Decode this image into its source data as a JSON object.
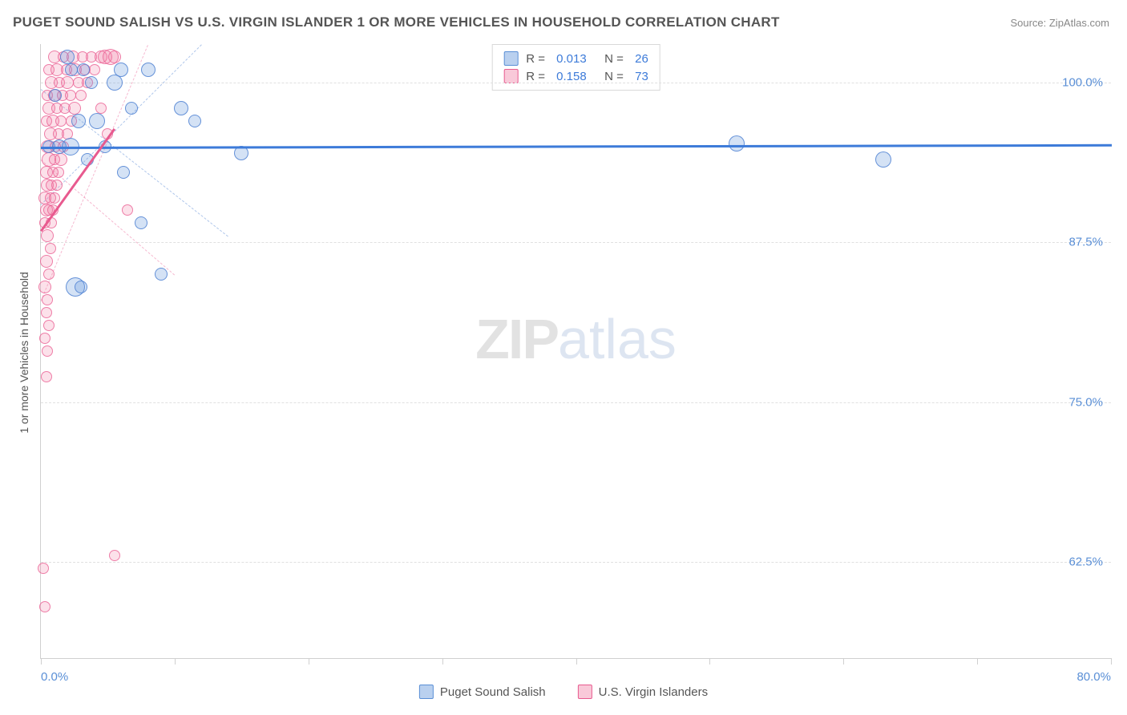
{
  "title": "PUGET SOUND SALISH VS U.S. VIRGIN ISLANDER 1 OR MORE VEHICLES IN HOUSEHOLD CORRELATION CHART",
  "source": "Source: ZipAtlas.com",
  "y_axis_label": "1 or more Vehicles in Household",
  "watermark_a": "ZIP",
  "watermark_b": "atlas",
  "chart": {
    "type": "scatter",
    "xlim": [
      0,
      80
    ],
    "ylim": [
      55,
      103
    ],
    "x_ticks": [
      0,
      10,
      20,
      30,
      40,
      50,
      60,
      70,
      80
    ],
    "x_tick_labels": {
      "0": "0.0%",
      "80": "80.0%"
    },
    "y_ticks": [
      62.5,
      75.0,
      87.5,
      100.0
    ],
    "y_tick_labels": [
      "62.5%",
      "75.0%",
      "87.5%",
      "100.0%"
    ],
    "grid_color": "#e0e0e0",
    "background_color": "#ffffff",
    "series": [
      {
        "name": "Puget Sound Salish",
        "color_fill": "rgba(100,150,220,0.28)",
        "color_stroke": "#5a8fd6",
        "marker_radius_base": 8,
        "stats": {
          "R": "0.013",
          "N": "26"
        },
        "trendline": {
          "x1": 0,
          "y1": 95.0,
          "x2": 80,
          "y2": 95.2
        },
        "confidence": [
          {
            "x1": 0,
            "y1": 90.5,
            "x2": 12,
            "y2": 103
          },
          {
            "x1": 0,
            "y1": 99.5,
            "x2": 14,
            "y2": 88
          }
        ],
        "points": [
          {
            "x": 0.6,
            "y": 95,
            "r": 8
          },
          {
            "x": 1.1,
            "y": 99,
            "r": 8
          },
          {
            "x": 1.4,
            "y": 95,
            "r": 9
          },
          {
            "x": 2.0,
            "y": 102,
            "r": 9
          },
          {
            "x": 2.3,
            "y": 101,
            "r": 8
          },
          {
            "x": 2.2,
            "y": 95,
            "r": 11
          },
          {
            "x": 2.8,
            "y": 97,
            "r": 9
          },
          {
            "x": 3.2,
            "y": 101,
            "r": 8
          },
          {
            "x": 3.5,
            "y": 94,
            "r": 8
          },
          {
            "x": 3.8,
            "y": 100,
            "r": 8
          },
          {
            "x": 4.2,
            "y": 97,
            "r": 10
          },
          {
            "x": 4.8,
            "y": 95,
            "r": 8
          },
          {
            "x": 5.5,
            "y": 100,
            "r": 10
          },
          {
            "x": 6.0,
            "y": 101,
            "r": 9
          },
          {
            "x": 6.2,
            "y": 93,
            "r": 8
          },
          {
            "x": 6.8,
            "y": 98,
            "r": 8
          },
          {
            "x": 7.5,
            "y": 89,
            "r": 8
          },
          {
            "x": 8.0,
            "y": 101,
            "r": 9
          },
          {
            "x": 9.0,
            "y": 85,
            "r": 8
          },
          {
            "x": 10.5,
            "y": 98,
            "r": 9
          },
          {
            "x": 11.5,
            "y": 97,
            "r": 8
          },
          {
            "x": 15.0,
            "y": 94.5,
            "r": 9
          },
          {
            "x": 52.0,
            "y": 95.2,
            "r": 10
          },
          {
            "x": 63.0,
            "y": 94.0,
            "r": 10
          },
          {
            "x": 2.6,
            "y": 84,
            "r": 12
          },
          {
            "x": 3.0,
            "y": 84,
            "r": 8
          }
        ]
      },
      {
        "name": "U.S. Virgin Islanders",
        "color_fill": "rgba(240,120,160,0.22)",
        "color_stroke": "#e85a8f",
        "marker_radius_base": 7,
        "stats": {
          "R": "0.158",
          "N": "73"
        },
        "trendline": {
          "x1": 0,
          "y1": 88.5,
          "x2": 5.5,
          "y2": 96.5
        },
        "confidence": [
          {
            "x1": 0,
            "y1": 83,
            "x2": 8,
            "y2": 103
          },
          {
            "x1": 0,
            "y1": 94,
            "x2": 10,
            "y2": 85
          }
        ],
        "points": [
          {
            "x": 0.3,
            "y": 59,
            "r": 7
          },
          {
            "x": 0.2,
            "y": 62,
            "r": 7
          },
          {
            "x": 0.4,
            "y": 77,
            "r": 7
          },
          {
            "x": 0.5,
            "y": 79,
            "r": 7
          },
          {
            "x": 0.3,
            "y": 80,
            "r": 7
          },
          {
            "x": 0.6,
            "y": 81,
            "r": 7
          },
          {
            "x": 0.4,
            "y": 82,
            "r": 7
          },
          {
            "x": 0.5,
            "y": 83,
            "r": 7
          },
          {
            "x": 0.3,
            "y": 84,
            "r": 8
          },
          {
            "x": 0.6,
            "y": 85,
            "r": 7
          },
          {
            "x": 0.4,
            "y": 86,
            "r": 8
          },
          {
            "x": 0.7,
            "y": 87,
            "r": 7
          },
          {
            "x": 0.5,
            "y": 88,
            "r": 8
          },
          {
            "x": 0.3,
            "y": 89,
            "r": 7
          },
          {
            "x": 0.8,
            "y": 89,
            "r": 7
          },
          {
            "x": 0.4,
            "y": 90,
            "r": 8
          },
          {
            "x": 0.6,
            "y": 90,
            "r": 7
          },
          {
            "x": 0.9,
            "y": 90,
            "r": 7
          },
          {
            "x": 0.3,
            "y": 91,
            "r": 8
          },
          {
            "x": 0.7,
            "y": 91,
            "r": 7
          },
          {
            "x": 1.0,
            "y": 91,
            "r": 7
          },
          {
            "x": 0.5,
            "y": 92,
            "r": 8
          },
          {
            "x": 0.8,
            "y": 92,
            "r": 7
          },
          {
            "x": 1.2,
            "y": 92,
            "r": 7
          },
          {
            "x": 0.4,
            "y": 93,
            "r": 8
          },
          {
            "x": 0.9,
            "y": 93,
            "r": 7
          },
          {
            "x": 1.3,
            "y": 93,
            "r": 7
          },
          {
            "x": 0.6,
            "y": 94,
            "r": 9
          },
          {
            "x": 1.0,
            "y": 94,
            "r": 7
          },
          {
            "x": 1.5,
            "y": 94,
            "r": 8
          },
          {
            "x": 0.5,
            "y": 95,
            "r": 8
          },
          {
            "x": 1.1,
            "y": 95,
            "r": 7
          },
          {
            "x": 1.7,
            "y": 95,
            "r": 7
          },
          {
            "x": 0.7,
            "y": 96,
            "r": 8
          },
          {
            "x": 1.3,
            "y": 96,
            "r": 7
          },
          {
            "x": 2.0,
            "y": 96,
            "r": 7
          },
          {
            "x": 0.4,
            "y": 97,
            "r": 7
          },
          {
            "x": 0.9,
            "y": 97,
            "r": 8
          },
          {
            "x": 1.5,
            "y": 97,
            "r": 7
          },
          {
            "x": 2.3,
            "y": 97,
            "r": 7
          },
          {
            "x": 0.6,
            "y": 98,
            "r": 8
          },
          {
            "x": 1.2,
            "y": 98,
            "r": 7
          },
          {
            "x": 1.8,
            "y": 98,
            "r": 7
          },
          {
            "x": 2.5,
            "y": 98,
            "r": 8
          },
          {
            "x": 0.5,
            "y": 99,
            "r": 7
          },
          {
            "x": 1.0,
            "y": 99,
            "r": 8
          },
          {
            "x": 1.6,
            "y": 99,
            "r": 7
          },
          {
            "x": 2.2,
            "y": 99,
            "r": 7
          },
          {
            "x": 3.0,
            "y": 99,
            "r": 7
          },
          {
            "x": 0.8,
            "y": 100,
            "r": 8
          },
          {
            "x": 1.4,
            "y": 100,
            "r": 7
          },
          {
            "x": 2.0,
            "y": 100,
            "r": 8
          },
          {
            "x": 2.8,
            "y": 100,
            "r": 7
          },
          {
            "x": 3.5,
            "y": 100,
            "r": 7
          },
          {
            "x": 0.6,
            "y": 101,
            "r": 7
          },
          {
            "x": 1.2,
            "y": 101,
            "r": 8
          },
          {
            "x": 1.9,
            "y": 101,
            "r": 7
          },
          {
            "x": 2.6,
            "y": 101,
            "r": 8
          },
          {
            "x": 3.3,
            "y": 101,
            "r": 7
          },
          {
            "x": 4.0,
            "y": 101,
            "r": 7
          },
          {
            "x": 1.0,
            "y": 102,
            "r": 8
          },
          {
            "x": 1.7,
            "y": 102,
            "r": 7
          },
          {
            "x": 2.4,
            "y": 102,
            "r": 8
          },
          {
            "x": 3.1,
            "y": 102,
            "r": 7
          },
          {
            "x": 3.8,
            "y": 102,
            "r": 7
          },
          {
            "x": 4.5,
            "y": 102,
            "r": 8
          },
          {
            "x": 4.8,
            "y": 102,
            "r": 9
          },
          {
            "x": 5.2,
            "y": 102,
            "r": 10
          },
          {
            "x": 5.5,
            "y": 102,
            "r": 8
          },
          {
            "x": 5.5,
            "y": 63,
            "r": 7
          },
          {
            "x": 6.5,
            "y": 90,
            "r": 7
          },
          {
            "x": 4.5,
            "y": 98,
            "r": 7
          },
          {
            "x": 5.0,
            "y": 96,
            "r": 7
          }
        ]
      }
    ]
  },
  "legend_top": {
    "rows": [
      {
        "swatch": "blue",
        "r_label": "R = ",
        "r_val": "0.013",
        "n_label": "   N = ",
        "n_val": "26"
      },
      {
        "swatch": "pink",
        "r_label": "R = ",
        "r_val": "0.158",
        "n_label": "   N = ",
        "n_val": "73"
      }
    ]
  },
  "legend_bottom": {
    "items": [
      {
        "swatch": "blue",
        "label": "Puget Sound Salish"
      },
      {
        "swatch": "pink",
        "label": "U.S. Virgin Islanders"
      }
    ]
  }
}
